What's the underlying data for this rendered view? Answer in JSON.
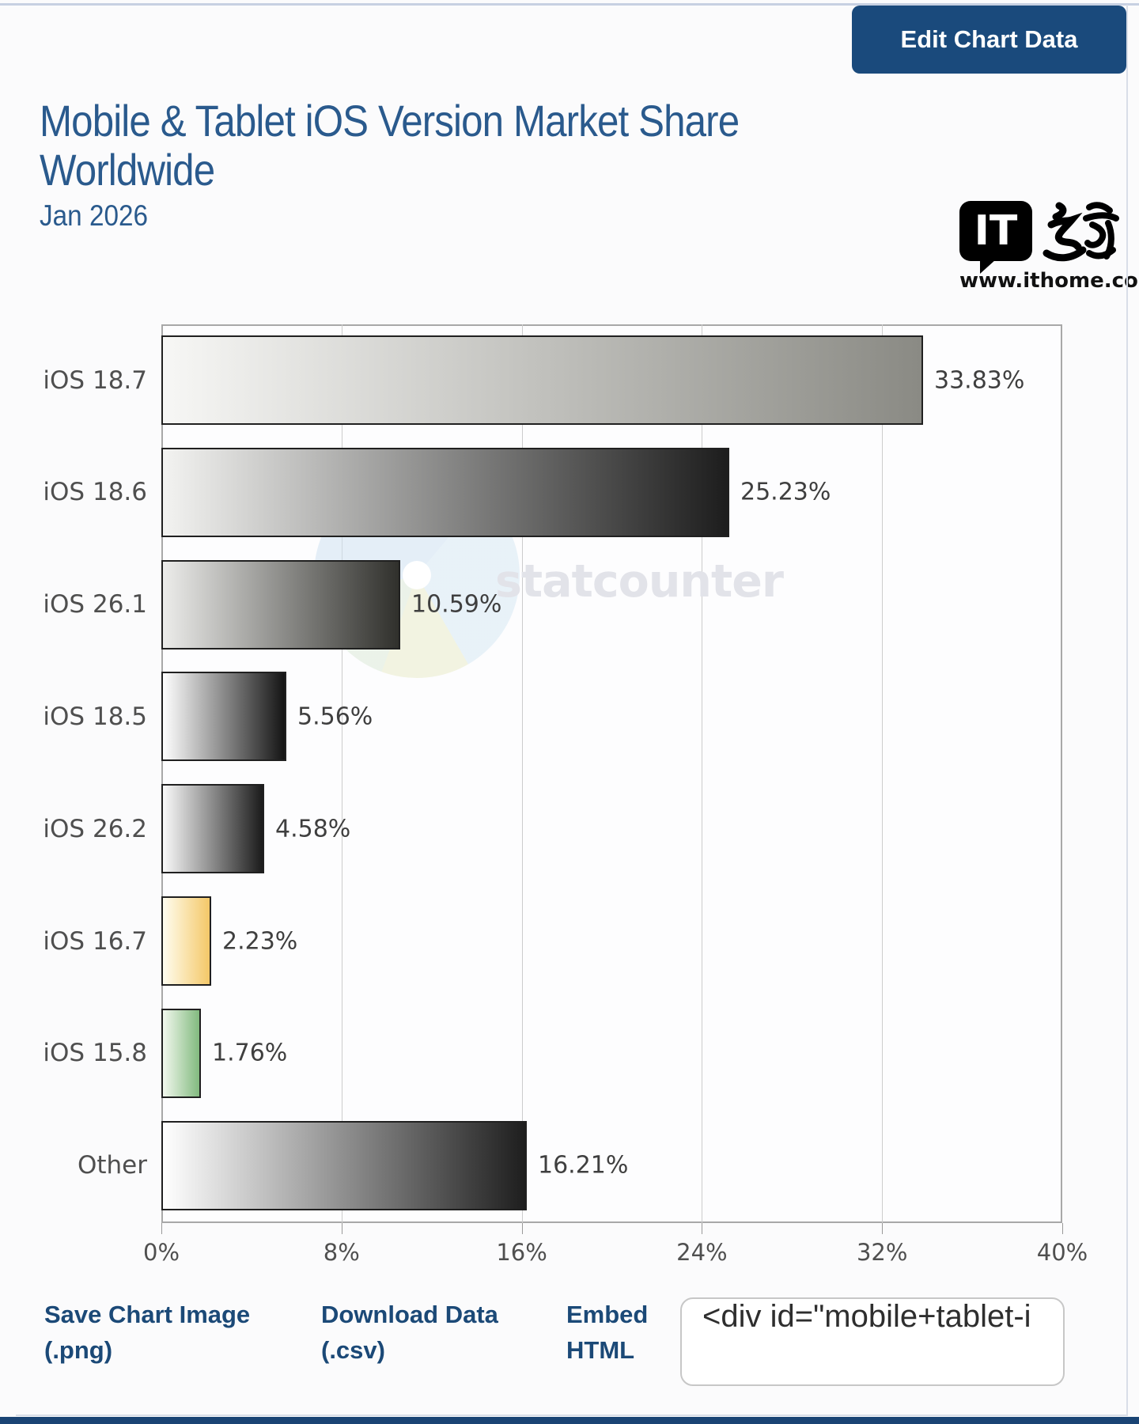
{
  "page": {
    "edit_button": "Edit Chart Data",
    "title_line1": "Mobile & Tablet iOS Version Market Share",
    "title_line2": "Worldwide",
    "subtitle": "Jan 2026",
    "logo": {
      "it_text": "IT",
      "url": "www.ithome.com"
    },
    "watermark": "statcounter",
    "colors": {
      "accent_blue": "#1a4a7c",
      "title_blue": "#2a5a8d",
      "footer_bar": "#1a4474"
    }
  },
  "chart_data": {
    "type": "bar",
    "orientation": "horizontal",
    "title": "Mobile & Tablet iOS Version Market Share Worldwide",
    "subtitle": "Jan 2026",
    "categories": [
      "iOS 18.7",
      "iOS 18.6",
      "iOS 26.1",
      "iOS 18.5",
      "iOS 26.2",
      "iOS 16.7",
      "iOS 15.8",
      "Other"
    ],
    "values": [
      33.83,
      25.23,
      10.59,
      5.56,
      4.58,
      2.23,
      1.76,
      16.21
    ],
    "value_labels": [
      "33.83%",
      "25.23%",
      "10.59%",
      "5.56%",
      "4.58%",
      "2.23%",
      "1.76%",
      "16.21%"
    ],
    "xlabel": "",
    "ylabel": "",
    "xlim": [
      0,
      40
    ],
    "x_ticks": [
      0,
      8,
      16,
      24,
      32,
      40
    ],
    "x_tick_labels": [
      "0%",
      "8%",
      "16%",
      "24%",
      "32%",
      "40%"
    ],
    "grid": true,
    "bar_gradients": [
      {
        "start": "#f7f7f5",
        "end": "#8a8a84"
      },
      {
        "start": "#f3f3f1",
        "end": "#1d1d1d"
      },
      {
        "start": "#ececea",
        "end": "#30302c"
      },
      {
        "start": "#ffffff",
        "end": "#141414"
      },
      {
        "start": "#fafafa",
        "end": "#1b1b1b"
      },
      {
        "start": "#fffdf0",
        "end": "#f4c868"
      },
      {
        "start": "#f2f8ee",
        "end": "#82ba7f"
      },
      {
        "start": "#ffffff",
        "end": "#1e1e1e"
      }
    ]
  },
  "footer": {
    "links": [
      {
        "label": "Save Chart Image (.png)"
      },
      {
        "label": "Download Data (.csv)"
      },
      {
        "label": "Embed HTML"
      }
    ],
    "embed_value": "<div id=\"mobile+tablet-i"
  }
}
